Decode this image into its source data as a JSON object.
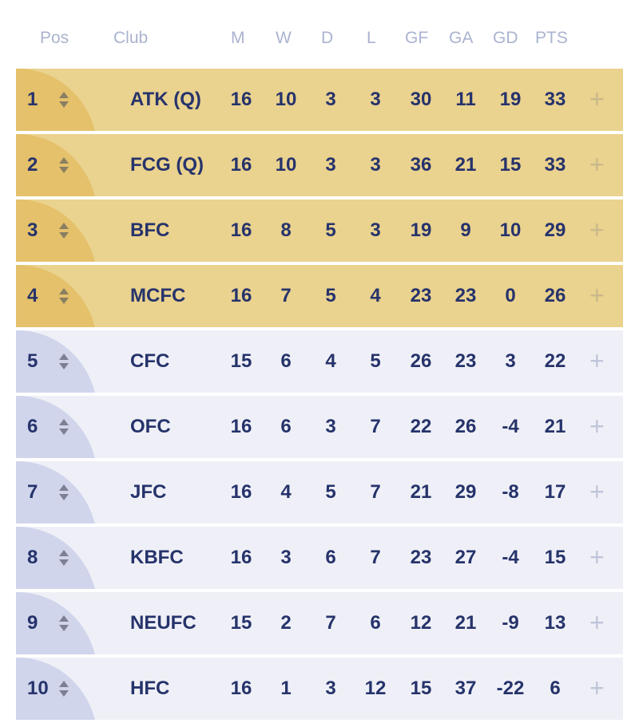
{
  "header": {
    "pos": "Pos",
    "club": "Club",
    "m": "M",
    "w": "W",
    "d": "D",
    "l": "L",
    "gf": "GF",
    "ga": "GA",
    "gd": "GD",
    "pts": "PTS"
  },
  "rows": [
    {
      "pos": "1",
      "club": "ATK (Q)",
      "m": "16",
      "w": "10",
      "d": "3",
      "l": "3",
      "gf": "30",
      "ga": "11",
      "gd": "19",
      "pts": "33",
      "style": "qual"
    },
    {
      "pos": "2",
      "club": "FCG (Q)",
      "m": "16",
      "w": "10",
      "d": "3",
      "l": "3",
      "gf": "36",
      "ga": "21",
      "gd": "15",
      "pts": "33",
      "style": "qual"
    },
    {
      "pos": "3",
      "club": "BFC",
      "m": "16",
      "w": "8",
      "d": "5",
      "l": "3",
      "gf": "19",
      "ga": "9",
      "gd": "10",
      "pts": "29",
      "style": "qual"
    },
    {
      "pos": "4",
      "club": "MCFC",
      "m": "16",
      "w": "7",
      "d": "5",
      "l": "4",
      "gf": "23",
      "ga": "23",
      "gd": "0",
      "pts": "26",
      "style": "qual"
    },
    {
      "pos": "5",
      "club": "CFC",
      "m": "15",
      "w": "6",
      "d": "4",
      "l": "5",
      "gf": "26",
      "ga": "23",
      "gd": "3",
      "pts": "22",
      "style": "norm"
    },
    {
      "pos": "6",
      "club": "OFC",
      "m": "16",
      "w": "6",
      "d": "3",
      "l": "7",
      "gf": "22",
      "ga": "26",
      "gd": "-4",
      "pts": "21",
      "style": "norm"
    },
    {
      "pos": "7",
      "club": "JFC",
      "m": "16",
      "w": "4",
      "d": "5",
      "l": "7",
      "gf": "21",
      "ga": "29",
      "gd": "-8",
      "pts": "17",
      "style": "norm"
    },
    {
      "pos": "8",
      "club": "KBFC",
      "m": "16",
      "w": "3",
      "d": "6",
      "l": "7",
      "gf": "23",
      "ga": "27",
      "gd": "-4",
      "pts": "15",
      "style": "norm"
    },
    {
      "pos": "9",
      "club": "NEUFC",
      "m": "15",
      "w": "2",
      "d": "7",
      "l": "6",
      "gf": "12",
      "ga": "21",
      "gd": "-9",
      "pts": "13",
      "style": "norm"
    },
    {
      "pos": "10",
      "club": "HFC",
      "m": "16",
      "w": "1",
      "d": "3",
      "l": "12",
      "gf": "15",
      "ga": "37",
      "gd": "-22",
      "pts": "6",
      "style": "norm"
    }
  ],
  "icons": {
    "sort": "sort-arrows-icon",
    "expand": "plus-icon",
    "expand_glyph": "+"
  },
  "colors": {
    "qualified_row": "#ead28f",
    "regular_row": "#eff0f7",
    "text": "#26336b",
    "header_text": "#aab3cf"
  }
}
